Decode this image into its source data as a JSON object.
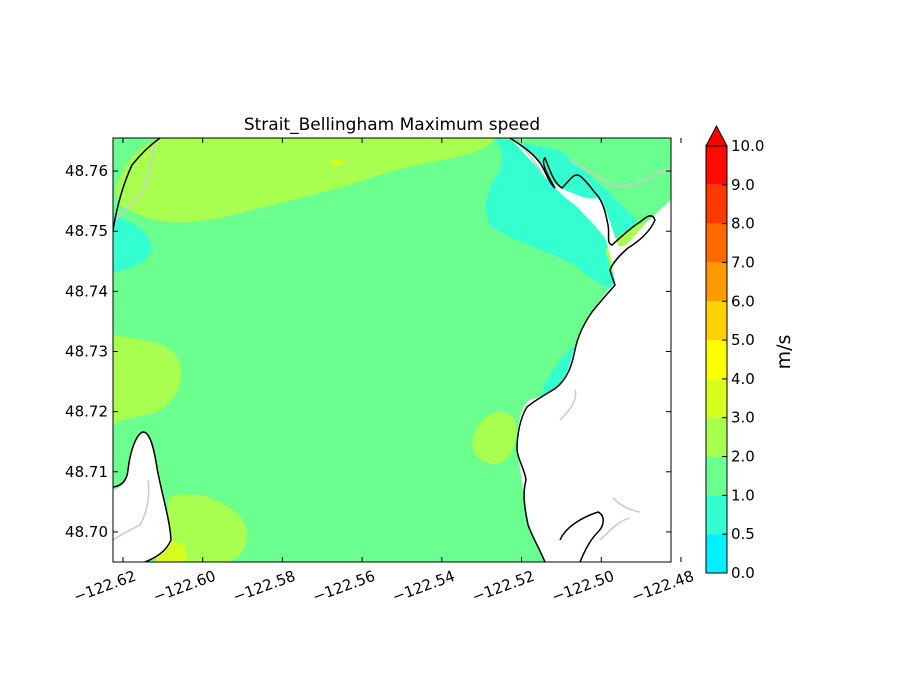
{
  "title": "Strait_Bellingham Maximum speed",
  "x_axis": {
    "ticks": [
      -122.62,
      -122.6,
      -122.58,
      -122.56,
      -122.54,
      -122.52,
      -122.5,
      -122.48
    ],
    "tick_labels": [
      "−122.62",
      "−122.60",
      "−122.58",
      "−122.56",
      "−122.54",
      "−122.52",
      "−122.50",
      "−122.48"
    ],
    "range": [
      -122.6225,
      -122.4825
    ]
  },
  "y_axis": {
    "ticks": [
      48.7,
      48.71,
      48.72,
      48.73,
      48.74,
      48.75,
      48.76
    ],
    "tick_labels": [
      "48.70",
      "48.71",
      "48.72",
      "48.73",
      "48.74",
      "48.75",
      "48.76"
    ],
    "range": [
      48.695,
      48.7655
    ]
  },
  "colorbar": {
    "unit": "m/s",
    "extend": "max",
    "levels": [
      0.0,
      0.5,
      1.0,
      2.0,
      3.0,
      4.0,
      5.0,
      6.0,
      7.0,
      8.0,
      9.0,
      10.0
    ],
    "tick_labels": [
      "0.0",
      "0.5",
      "1.0",
      "2.0",
      "3.0",
      "4.0",
      "5.0",
      "6.0",
      "7.0",
      "8.0",
      "9.0",
      "10.0"
    ],
    "colors": [
      "#00f0ff",
      "#33ffd0",
      "#6aff8e",
      "#a8ff4f",
      "#d6ff1f",
      "#ffff00",
      "#ffd000",
      "#ff9a00",
      "#ff6a00",
      "#ff3a00",
      "#ff0a00"
    ],
    "extend_color": "#ff0000"
  },
  "colors": {
    "water_main": "#6aff8e",
    "water_slow": "#33ffd0",
    "water_slowest": "#00f0ff",
    "water_fast": "#a8ff4f",
    "water_faster": "#d6ff1f",
    "land": "#ffffff",
    "coastline": "#000000",
    "coast_ref": "#cccccc"
  }
}
